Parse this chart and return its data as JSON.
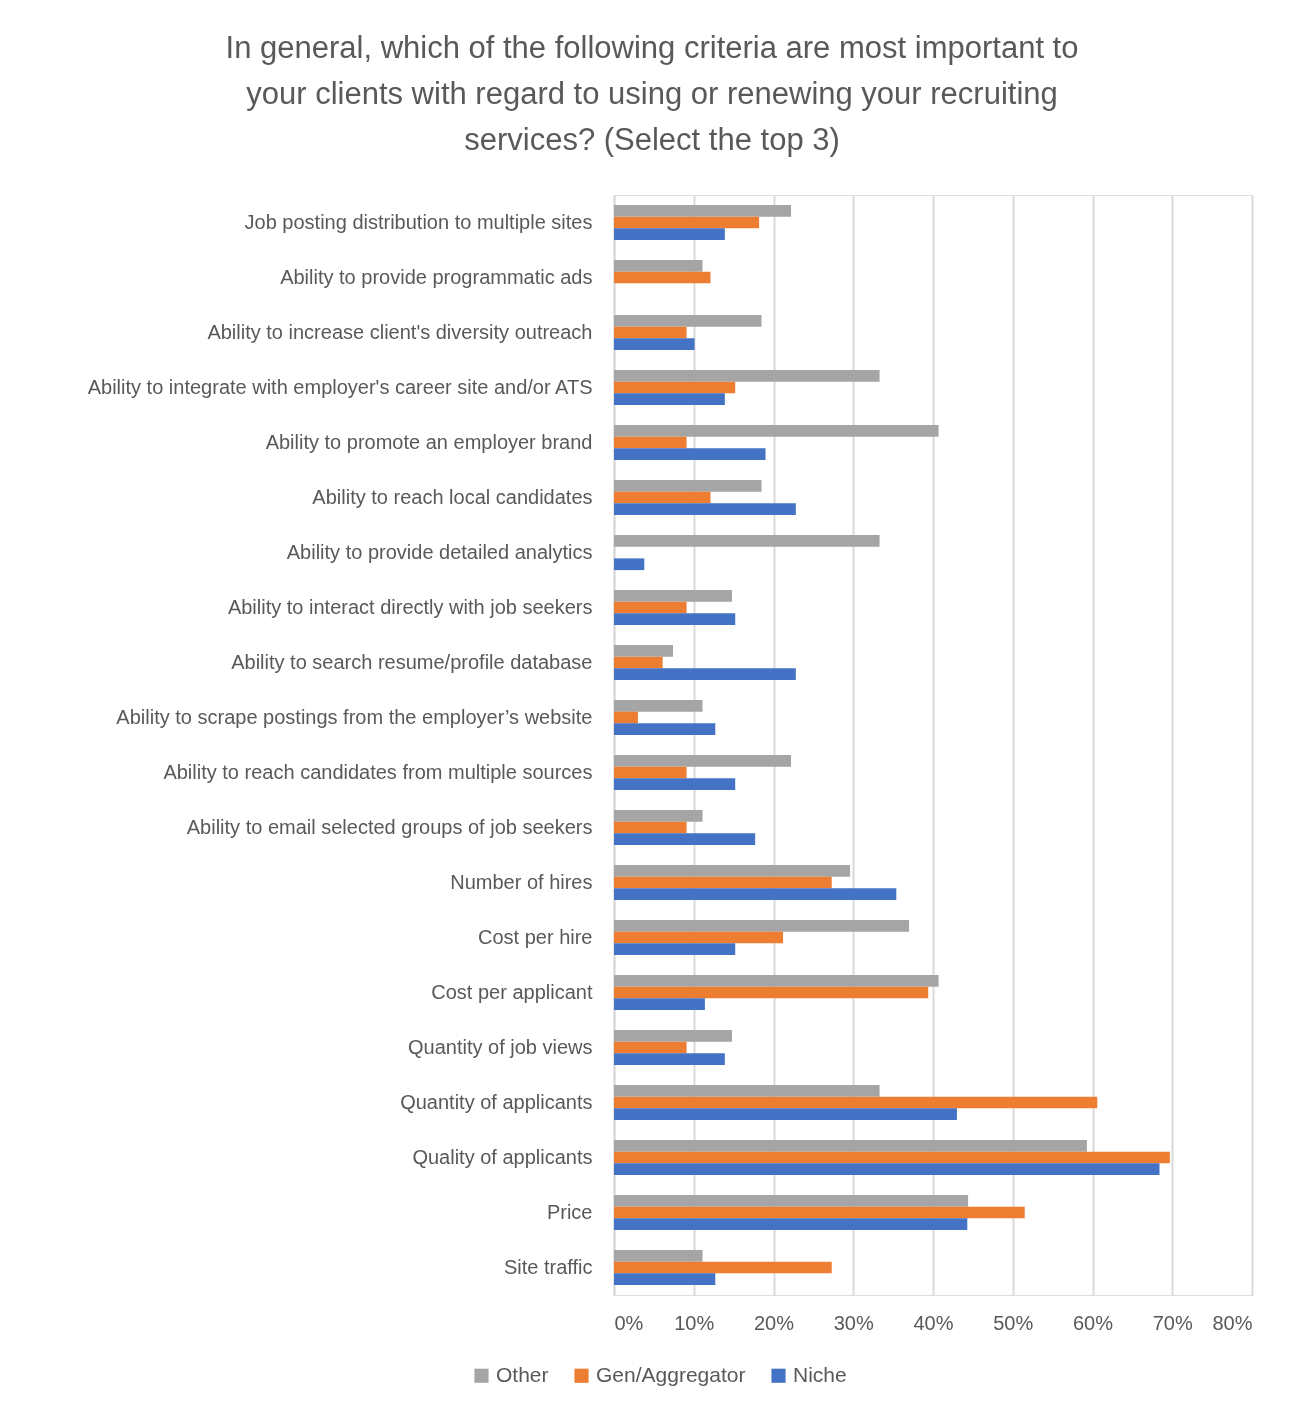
{
  "chart_data": {
    "type": "bar",
    "orientation": "horizontal",
    "title": "In general, which of the following criteria are most important to your clients with regard to using or renewing your recruiting services? (Select the top 3)",
    "categories": [
      "Job posting distribution to multiple sites",
      "Ability to provide programmatic ads",
      "Ability to increase client's diversity outreach",
      "Ability to integrate with employer's career site and/or ATS",
      "Ability to promote an employer brand",
      "Ability to reach local candidates",
      "Ability to provide detailed analytics",
      "Ability to interact directly with job seekers",
      "Ability to search resume/profile database",
      "Ability to scrape postings from the employer’s website",
      "Ability to reach candidates from multiple sources",
      "Ability to email selected groups of job seekers",
      "Number of hires",
      "Cost per hire",
      "Cost per applicant",
      "Quantity of job views",
      "Quantity of applicants",
      "Quality of applicants",
      "Price",
      "Site traffic"
    ],
    "series": [
      {
        "name": "Other",
        "color": "#a5a5a5",
        "values": [
          22.2,
          11.1,
          18.5,
          33.3,
          40.7,
          18.5,
          33.3,
          14.8,
          7.4,
          11.1,
          22.2,
          11.1,
          29.6,
          37.0,
          40.7,
          14.8,
          33.3,
          59.3,
          44.4,
          11.1
        ]
      },
      {
        "name": "Gen/Aggregator",
        "color": "#ed7d31",
        "values": [
          18.2,
          12.1,
          9.1,
          15.2,
          9.1,
          12.1,
          null,
          9.1,
          6.1,
          3.0,
          9.1,
          9.1,
          27.3,
          21.2,
          39.4,
          9.1,
          60.6,
          69.7,
          51.5,
          27.3
        ]
      },
      {
        "name": "Niche",
        "color": "#4472c4",
        "values": [
          13.9,
          null,
          10.1,
          13.9,
          19.0,
          22.8,
          3.8,
          15.2,
          22.8,
          12.7,
          15.2,
          17.7,
          35.4,
          15.2,
          11.4,
          13.9,
          43.0,
          68.4,
          44.3,
          12.7
        ]
      }
    ],
    "xlim": [
      0,
      80
    ],
    "xticks": [
      {
        "value": 0,
        "label": "0%"
      },
      {
        "value": 10,
        "label": "10%"
      },
      {
        "value": 20,
        "label": "20%"
      },
      {
        "value": 30,
        "label": "30%"
      },
      {
        "value": 40,
        "label": "40%"
      },
      {
        "value": 50,
        "label": "50%"
      },
      {
        "value": 60,
        "label": "60%"
      },
      {
        "value": 70,
        "label": "70%"
      },
      {
        "value": 80,
        "label": "80%"
      }
    ],
    "grid": "x",
    "legend": "bottom"
  }
}
